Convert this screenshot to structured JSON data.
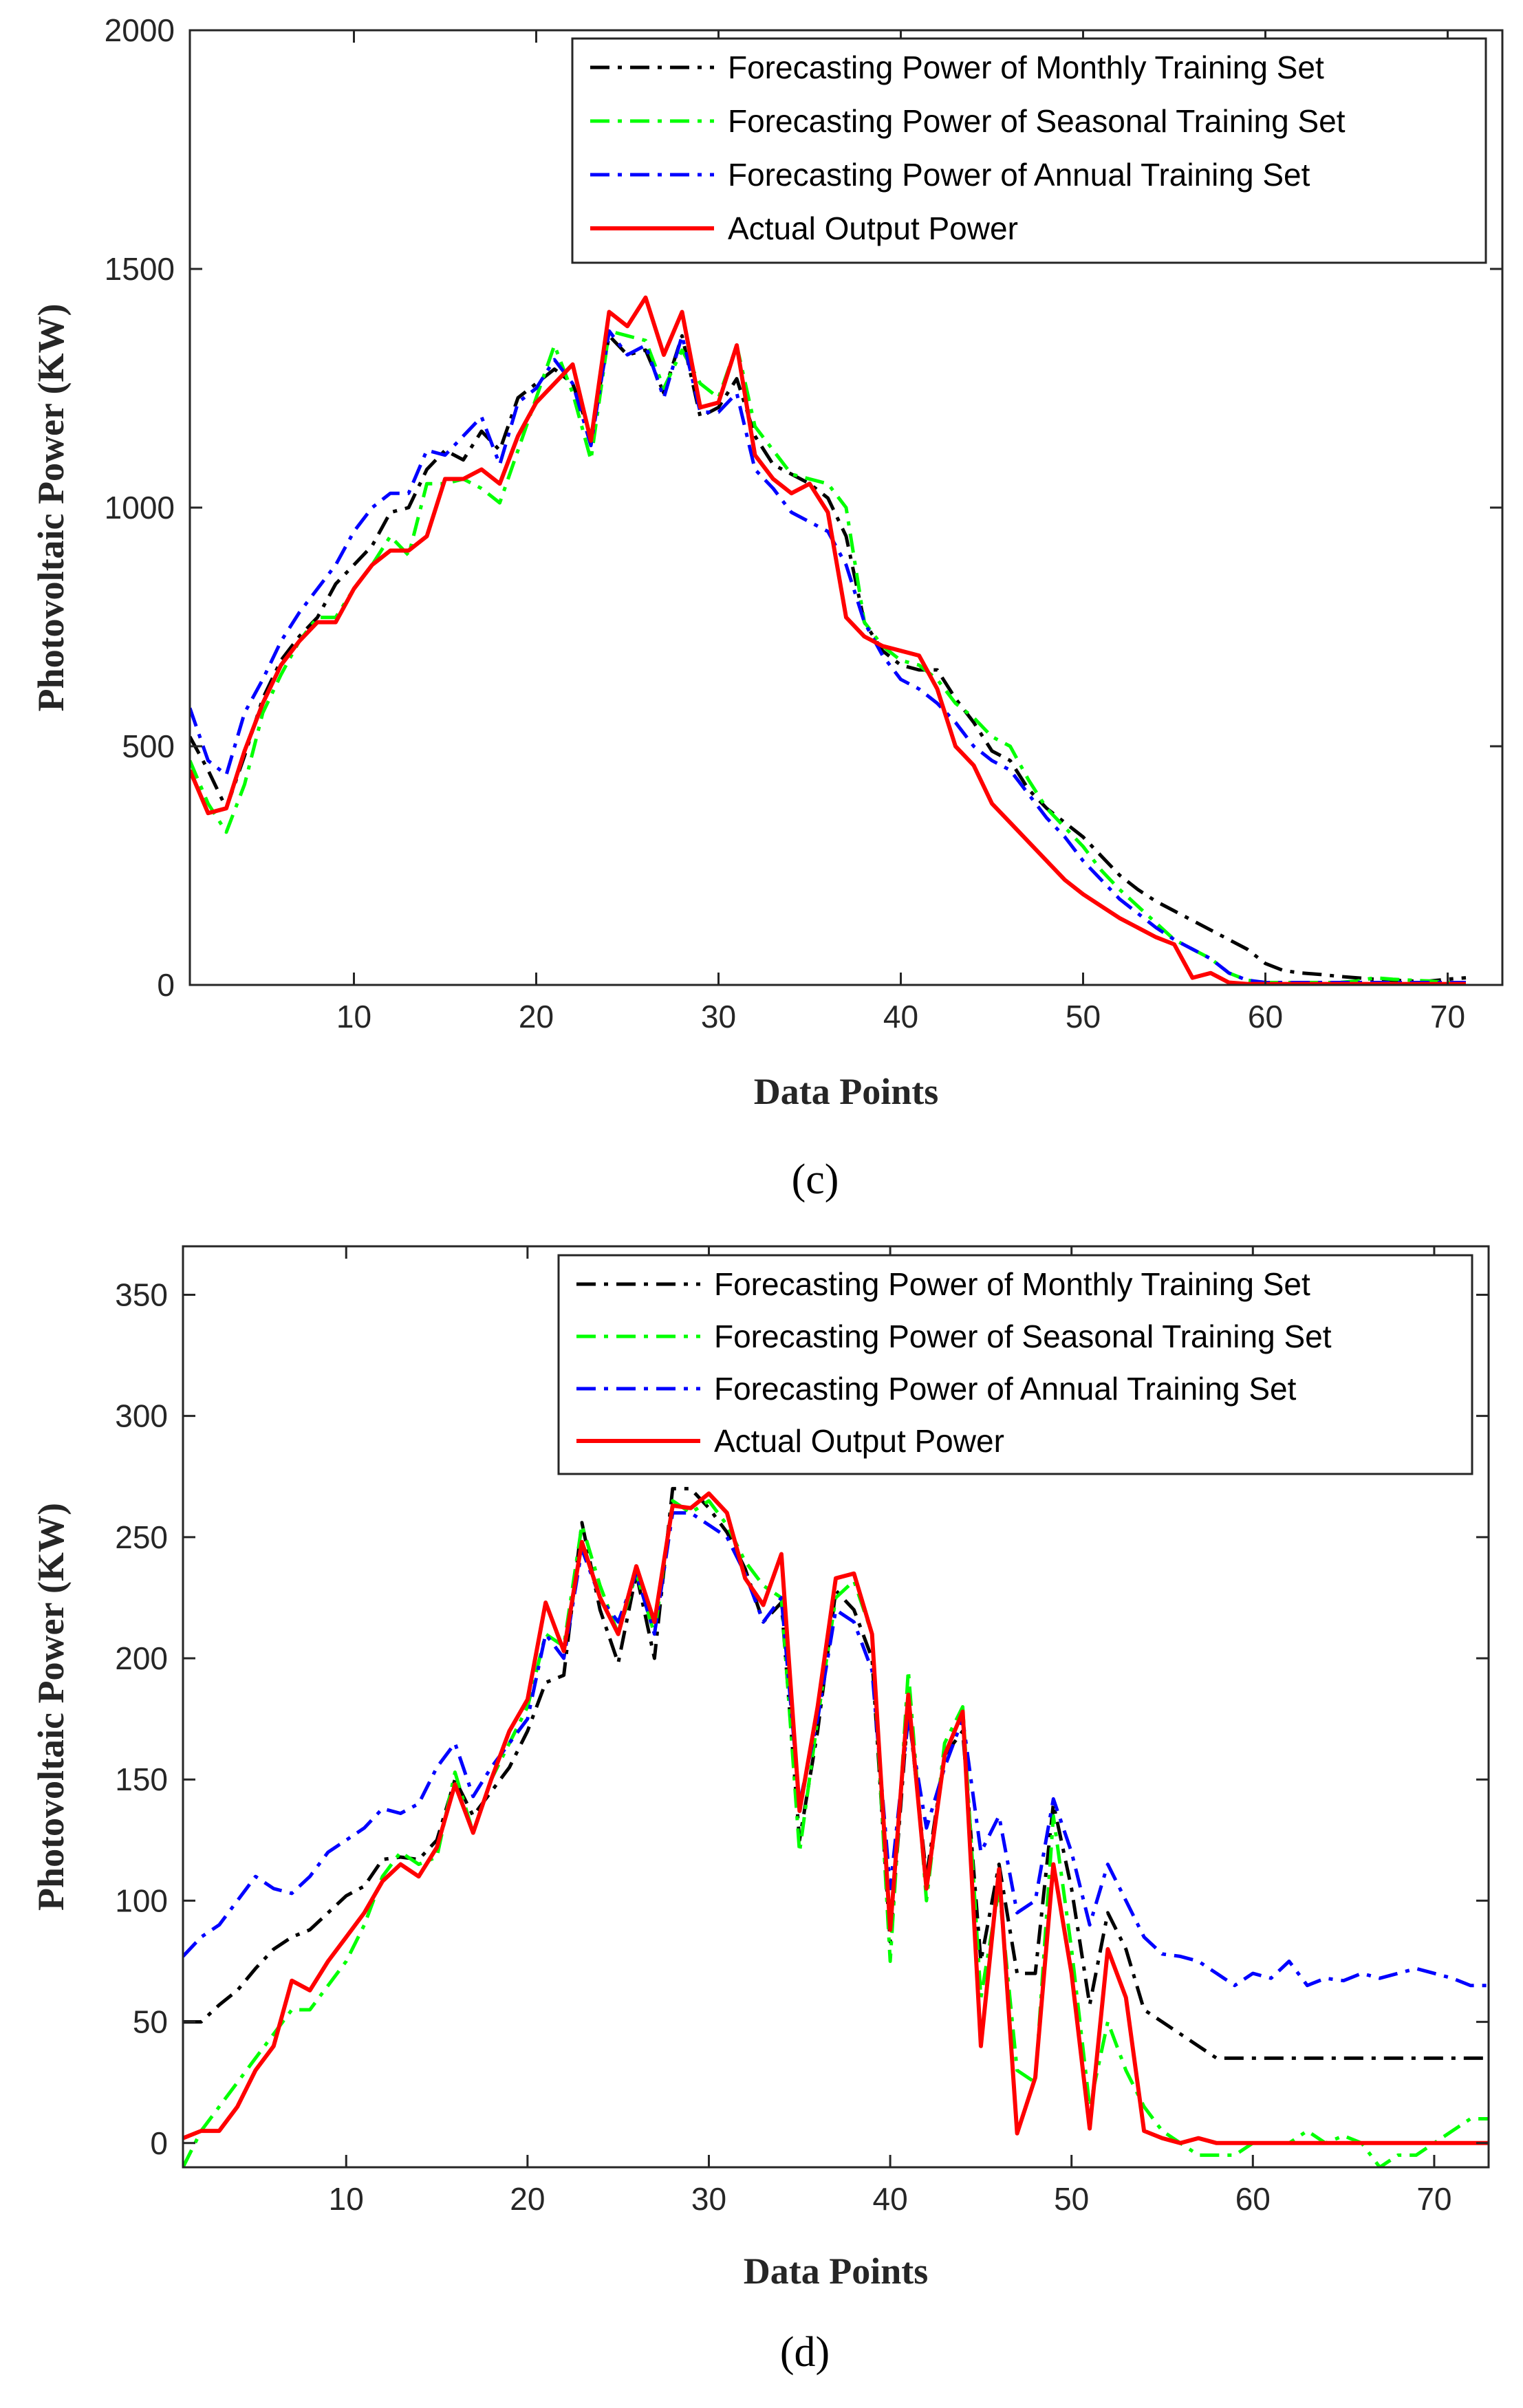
{
  "colors": {
    "monthly": "#000000",
    "seasonal": "#00ff00",
    "annual": "#0000ff",
    "actual": "#ff0000",
    "axis": "#262626"
  },
  "chart_data": [
    {
      "type": "line",
      "label": "(c)",
      "title": "",
      "xlabel": "Data Points",
      "ylabel": "Photovoltaic Power (KW)",
      "xlim": [
        1,
        73
      ],
      "ylim": [
        0,
        2000
      ],
      "xticks": [
        10,
        20,
        30,
        40,
        50,
        60,
        70
      ],
      "yticks": [
        0,
        500,
        1000,
        1500,
        2000
      ],
      "legend_position": "top-right",
      "series": [
        {
          "name": "Forecasting Power of Monthly Training Set",
          "style": "dashdot",
          "key": "monthly",
          "values": [
            520,
            450,
            370,
            480,
            600,
            680,
            730,
            770,
            840,
            880,
            920,
            990,
            1000,
            1080,
            1120,
            1100,
            1160,
            1120,
            1230,
            1260,
            1290,
            1260,
            1150,
            1360,
            1320,
            1330,
            1240,
            1360,
            1190,
            1210,
            1270,
            1150,
            1090,
            1070,
            1050,
            1020,
            940,
            760,
            700,
            670,
            660,
            660,
            600,
            550,
            490,
            470,
            410,
            370,
            340,
            310,
            270,
            230,
            200,
            175,
            155,
            135,
            115,
            95,
            75,
            45,
            30,
            25,
            22,
            18,
            15,
            12,
            10,
            8,
            8,
            12,
            15
          ]
        },
        {
          "name": "Forecasting Power of Seasonal Training Set",
          "style": "dashdot",
          "key": "seasonal",
          "values": [
            470,
            380,
            320,
            420,
            570,
            650,
            720,
            770,
            770,
            830,
            880,
            940,
            900,
            1050,
            1050,
            1060,
            1040,
            1010,
            1120,
            1230,
            1340,
            1240,
            1100,
            1370,
            1360,
            1350,
            1250,
            1330,
            1260,
            1230,
            1340,
            1170,
            1120,
            1070,
            1060,
            1050,
            1000,
            760,
            710,
            680,
            670,
            640,
            590,
            560,
            520,
            500,
            430,
            370,
            330,
            290,
            240,
            200,
            165,
            130,
            95,
            75,
            55,
            25,
            10,
            5,
            5,
            5,
            5,
            5,
            8,
            15,
            12,
            10,
            8,
            5,
            5
          ]
        },
        {
          "name": "Forecasting Power of Annual Training Set",
          "style": "dashdot",
          "key": "annual",
          "values": [
            580,
            470,
            440,
            570,
            640,
            720,
            780,
            830,
            880,
            950,
            1000,
            1030,
            1030,
            1120,
            1110,
            1150,
            1190,
            1090,
            1220,
            1250,
            1310,
            1260,
            1130,
            1370,
            1320,
            1340,
            1230,
            1360,
            1200,
            1200,
            1240,
            1080,
            1040,
            990,
            970,
            950,
            880,
            760,
            690,
            640,
            620,
            590,
            550,
            500,
            470,
            450,
            400,
            350,
            310,
            260,
            220,
            180,
            150,
            120,
            95,
            75,
            55,
            25,
            10,
            5,
            5,
            5,
            5,
            5,
            5,
            5,
            5,
            5,
            5,
            5,
            5
          ]
        },
        {
          "name": "Actual Output Power",
          "style": "solid",
          "key": "actual",
          "values": [
            450,
            360,
            370,
            490,
            590,
            670,
            720,
            760,
            760,
            830,
            880,
            910,
            910,
            940,
            1060,
            1060,
            1080,
            1050,
            1150,
            1220,
            1260,
            1300,
            1140,
            1410,
            1380,
            1440,
            1320,
            1410,
            1210,
            1220,
            1340,
            1110,
            1060,
            1030,
            1050,
            990,
            770,
            730,
            710,
            700,
            690,
            620,
            500,
            460,
            380,
            340,
            300,
            260,
            220,
            190,
            165,
            140,
            120,
            100,
            85,
            15,
            25,
            5,
            2,
            2,
            2,
            2,
            2,
            2,
            2,
            2,
            2,
            2,
            2,
            2,
            2
          ]
        }
      ]
    },
    {
      "type": "line",
      "label": "(d)",
      "title": "",
      "xlabel": "Data Points",
      "ylabel": "Photovoltaic Power (KW)",
      "xlim": [
        1,
        73
      ],
      "ylim": [
        -10,
        370
      ],
      "xticks": [
        10,
        20,
        30,
        40,
        50,
        60,
        70
      ],
      "yticks": [
        0,
        50,
        100,
        150,
        200,
        250,
        300,
        350
      ],
      "legend_position": "top-right",
      "series": [
        {
          "name": "Forecasting Power of Monthly Training Set",
          "style": "dashdot",
          "key": "monthly",
          "values": [
            50,
            50,
            57,
            63,
            72,
            80,
            85,
            88,
            95,
            102,
            106,
            117,
            118,
            117,
            125,
            150,
            135,
            145,
            155,
            170,
            190,
            193,
            256,
            220,
            198,
            235,
            200,
            270,
            270,
            262,
            252,
            237,
            215,
            223,
            125,
            170,
            228,
            220,
            200,
            83,
            180,
            110,
            160,
            170,
            75,
            115,
            70,
            70,
            140,
            105,
            57,
            95,
            80,
            55,
            50,
            45,
            40,
            35,
            35,
            35,
            35,
            35,
            35,
            35,
            35,
            35,
            35,
            35,
            35,
            35,
            35,
            35,
            35
          ]
        },
        {
          "name": "Forecasting Power of Seasonal Training Set",
          "style": "dashdot",
          "key": "seasonal",
          "values": [
            -10,
            5,
            15,
            25,
            35,
            45,
            55,
            55,
            65,
            75,
            90,
            110,
            120,
            115,
            118,
            153,
            128,
            150,
            165,
            180,
            210,
            205,
            255,
            230,
            210,
            235,
            210,
            265,
            260,
            265,
            255,
            240,
            230,
            225,
            120,
            175,
            225,
            232,
            210,
            75,
            195,
            100,
            165,
            180,
            60,
            105,
            30,
            25,
            135,
            80,
            15,
            50,
            30,
            15,
            5,
            0,
            -5,
            -5,
            -5,
            0,
            0,
            0,
            5,
            0,
            3,
            0,
            -10,
            -5,
            -5,
            0,
            5,
            10,
            10
          ]
        },
        {
          "name": "Forecasting Power of Annual Training Set",
          "style": "dashdot",
          "key": "annual",
          "values": [
            77,
            85,
            90,
            100,
            110,
            105,
            103,
            110,
            120,
            125,
            130,
            138,
            136,
            140,
            155,
            165,
            143,
            155,
            165,
            175,
            210,
            200,
            245,
            225,
            215,
            235,
            210,
            260,
            260,
            255,
            250,
            235,
            215,
            225,
            140,
            175,
            220,
            215,
            195,
            105,
            175,
            130,
            155,
            175,
            120,
            135,
            95,
            100,
            142,
            120,
            90,
            115,
            100,
            85,
            78,
            77,
            75,
            70,
            65,
            70,
            68,
            75,
            65,
            68,
            67,
            70,
            68,
            70,
            72,
            70,
            68,
            65,
            65
          ]
        },
        {
          "name": "Actual Output Power",
          "style": "solid",
          "key": "actual",
          "values": [
            2,
            5,
            5,
            15,
            30,
            40,
            67,
            63,
            75,
            85,
            95,
            108,
            115,
            110,
            122,
            148,
            128,
            150,
            170,
            183,
            223,
            203,
            248,
            225,
            210,
            238,
            215,
            263,
            262,
            268,
            260,
            233,
            222,
            243,
            137,
            180,
            233,
            235,
            210,
            88,
            185,
            105,
            160,
            178,
            40,
            113,
            4,
            27,
            115,
            70,
            6,
            80,
            60,
            5,
            2,
            0,
            2,
            0,
            0,
            0,
            0,
            0,
            0,
            0,
            0,
            0,
            0,
            0,
            0,
            0,
            0,
            0,
            0
          ]
        }
      ]
    }
  ]
}
